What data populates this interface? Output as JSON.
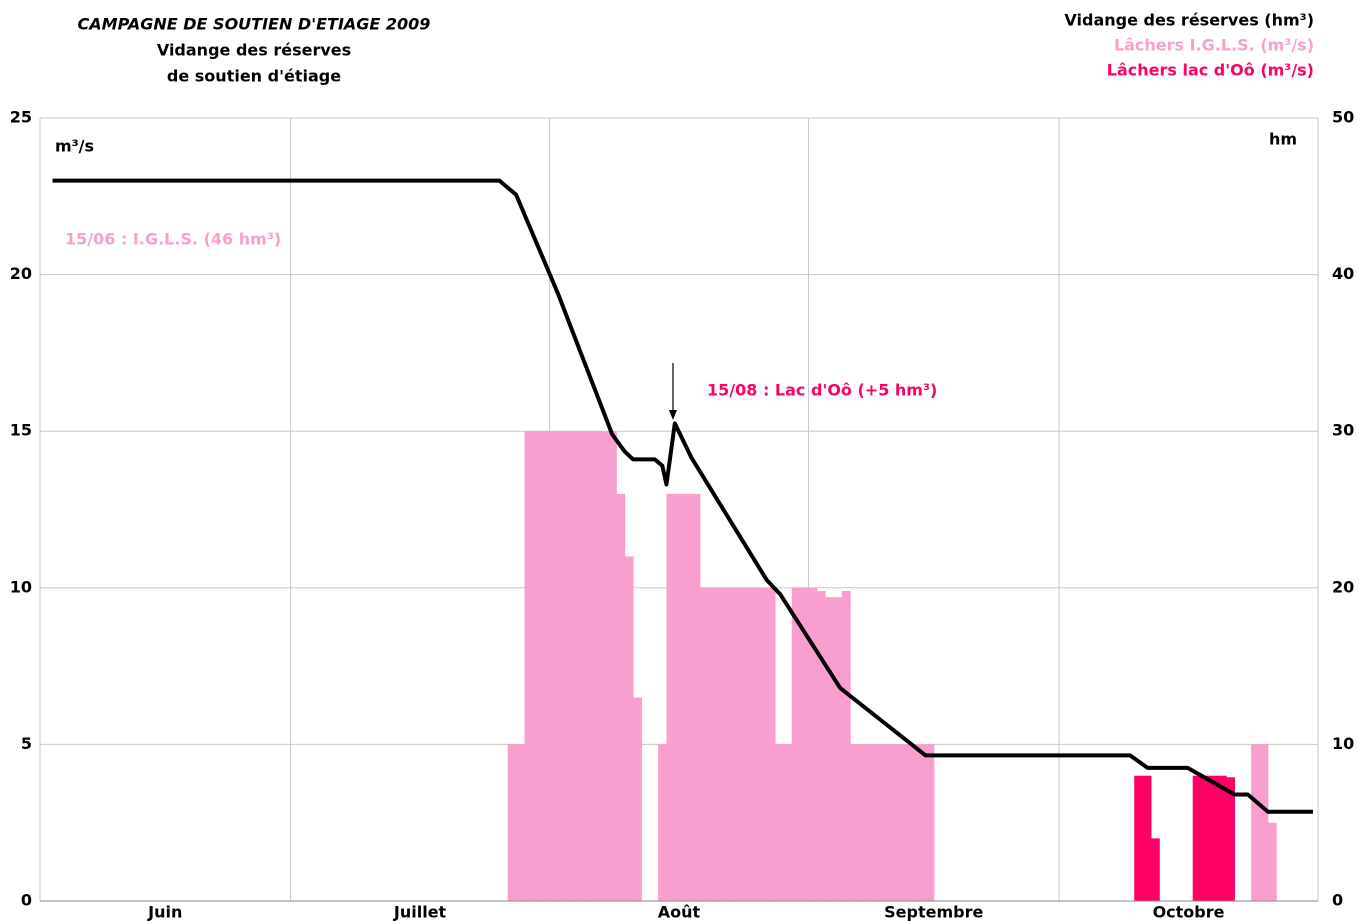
{
  "chart_data": {
    "type": "bar_line",
    "title": "CAMPAGNE DE SOUTIEN D'ETIAGE 2009",
    "subtitle": [
      "Vidange des réserves",
      "de soutien d'étiage"
    ],
    "y_label": "m³/s",
    "y2_label": "hm",
    "months": [
      "Juin",
      "Juillet",
      "Août",
      "Septembre",
      "Octobre"
    ],
    "xlim": [
      0,
      153
    ],
    "xticks": [
      0,
      30,
      61,
      92,
      122,
      153
    ],
    "ylim": [
      0,
      25
    ],
    "yticks": [
      0,
      5,
      10,
      15,
      20,
      25
    ],
    "y2lim": [
      0,
      50
    ],
    "y2ticks": [
      0,
      10,
      20,
      30,
      40,
      50
    ],
    "grid": true,
    "annotations": [
      {
        "text": "15/06 : I.G.L.S. (46 hm³)",
        "color": "#f99fcf"
      },
      {
        "text": "15/08 : Lac d'Oô (+5 hm³)",
        "color": "#ff0066"
      }
    ],
    "series": [
      {
        "name": "Vidange des réserves (hm³)",
        "color": "#000000",
        "kind": "line",
        "axis": "y2",
        "x": [
          1.5,
          55,
          57,
          62,
          68.5,
          70,
          71,
          73.6,
          74.5,
          75,
          76,
          78,
          87,
          88.6,
          95.8,
          106,
          130.5,
          132.6,
          137.4,
          143,
          144.6,
          147,
          152.4
        ],
        "values": [
          46,
          46,
          45.1,
          38.8,
          29.8,
          28.7,
          28.2,
          28.2,
          27.8,
          26.6,
          30.5,
          28.3,
          20.5,
          19.6,
          13.6,
          9.3,
          9.3,
          8.5,
          8.5,
          6.8,
          6.8,
          5.7,
          5.7
        ]
      },
      {
        "name": "Lâchers I.G.L.S. (m³/s)",
        "color": "#f99fcf",
        "kind": "bar",
        "x": [
          56,
          57,
          58,
          59,
          60,
          61,
          62,
          63,
          64,
          65,
          66,
          67,
          68,
          69,
          70,
          71,
          74,
          75,
          76,
          77,
          78,
          79,
          80,
          81,
          82,
          83,
          84,
          85,
          86,
          87,
          88,
          89,
          90,
          91,
          92,
          93,
          94,
          95,
          96,
          97,
          98,
          99,
          100,
          101,
          102,
          103,
          104,
          105,
          106,
          145,
          146,
          147
        ],
        "values": [
          5,
          5,
          15,
          15,
          15,
          15,
          15,
          15,
          15,
          15,
          15,
          15,
          15,
          13,
          11,
          6.5,
          5,
          13,
          13,
          13,
          13,
          10,
          10,
          10,
          10,
          10,
          10,
          10,
          10,
          10,
          5,
          5,
          10,
          10,
          10,
          9.9,
          9.7,
          9.7,
          9.9,
          5,
          5,
          5,
          5,
          5,
          5,
          5,
          5,
          5,
          5,
          5,
          5,
          2.5
        ]
      },
      {
        "name": "Lâchers lac d'Oô (m³/s)",
        "color": "#ff0066",
        "kind": "bar",
        "x": [
          131,
          132,
          133,
          138,
          139,
          140,
          141,
          142
        ],
        "values": [
          4,
          4,
          2,
          4,
          4,
          4,
          4,
          3.95
        ]
      }
    ]
  }
}
